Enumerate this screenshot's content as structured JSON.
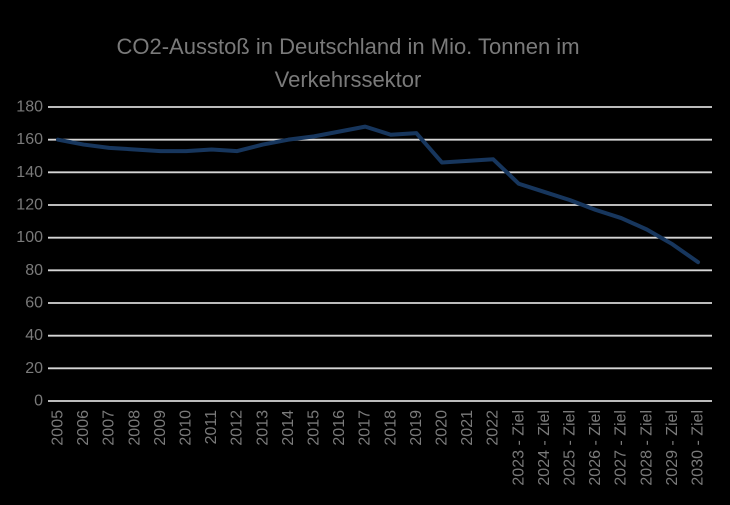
{
  "chart_data": {
    "type": "line",
    "title": "CO2-Ausstoß in Deutschland in Mio. Tonnen im Verkehrssektor",
    "title_lines": [
      "CO2-Ausstoß in Deutschland in Mio. Tonnen im",
      "Verkehrssektor"
    ],
    "categories": [
      "2005",
      "2006",
      "2007",
      "2008",
      "2009",
      "2010",
      "2011",
      "2012",
      "2013",
      "2014",
      "2015",
      "2016",
      "2017",
      "2018",
      "2019",
      "2020",
      "2021",
      "2022",
      "2023 - Ziel",
      "2024 - Ziel",
      "2025 - Ziel",
      "2026 - Ziel",
      "2027 - Ziel",
      "2028 - Ziel",
      "2029 - Ziel",
      "2030 - Ziel"
    ],
    "values": [
      160,
      157,
      155,
      154,
      153,
      153,
      154,
      153,
      157,
      160,
      162,
      165,
      168,
      163,
      164,
      146,
      147,
      148,
      133,
      128,
      123,
      117,
      112,
      105,
      96,
      85
    ],
    "xlabel": "",
    "ylabel": "",
    "ylim": [
      0,
      180
    ],
    "ytick_step": 20,
    "ytick_labels": [
      "0",
      "20",
      "40",
      "60",
      "80",
      "100",
      "120",
      "140",
      "160",
      "180"
    ],
    "grid": "horizontal",
    "legend": "none",
    "colors": {
      "background": "#000000",
      "line": "#17365D",
      "grid": "#D6D6D6",
      "text": "#7A7A7A"
    }
  }
}
